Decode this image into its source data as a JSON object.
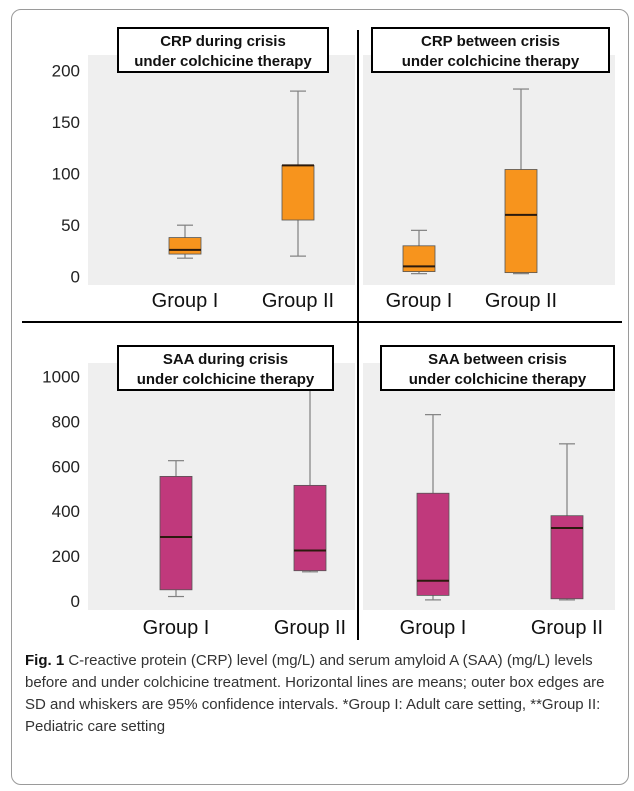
{
  "chart_data": [
    {
      "type": "boxplot",
      "title": "CRP during crisis under colchicine therapy",
      "title_lines": [
        "CRP during crisis",
        "under colchicine therapy"
      ],
      "ylim": [
        -8,
        215
      ],
      "yticks": [
        0,
        50,
        100,
        150,
        200
      ],
      "categories": [
        "Group I",
        "Group II"
      ],
      "box_color": "#f7941d",
      "boxes": [
        {
          "whisker_low": 18,
          "q1": 22,
          "mean": 26,
          "q3": 38,
          "whisker_high": 50
        },
        {
          "whisker_low": 20,
          "q1": 55,
          "mean": 108,
          "q3": 108,
          "whisker_high": 180
        }
      ]
    },
    {
      "type": "boxplot",
      "title": "CRP between crisis under colchicine therapy",
      "title_lines": [
        "CRP between crisis",
        "under colchicine therapy"
      ],
      "ylim": [
        -8,
        215
      ],
      "yticks": [],
      "categories": [
        "Group I",
        "Group II"
      ],
      "box_color": "#f7941d",
      "boxes": [
        {
          "whisker_low": 3,
          "q1": 5,
          "mean": 10,
          "q3": 30,
          "whisker_high": 45
        },
        {
          "whisker_low": 3,
          "q1": 4,
          "mean": 60,
          "q3": 104,
          "whisker_high": 182
        }
      ]
    },
    {
      "type": "boxplot",
      "title": "SAA during crisis under colchicine therapy",
      "title_lines": [
        "SAA during crisis",
        "under colchicine therapy"
      ],
      "ylim": [
        -40,
        1060
      ],
      "yticks": [
        0,
        200,
        400,
        600,
        800,
        1000
      ],
      "categories": [
        "Group I",
        "Group II"
      ],
      "box_color": "#c0397c",
      "boxes": [
        {
          "whisker_low": 20,
          "q1": 50,
          "mean": 285,
          "q3": 555,
          "whisker_high": 625
        },
        {
          "whisker_low": 130,
          "q1": 135,
          "mean": 225,
          "q3": 515,
          "whisker_high": 945
        }
      ]
    },
    {
      "type": "boxplot",
      "title": "SAA between crisis under colchicine therapy",
      "title_lines": [
        "SAA between crisis",
        "under colchicine therapy"
      ],
      "ylim": [
        -40,
        1060
      ],
      "yticks": [],
      "categories": [
        "Group I",
        "Group II"
      ],
      "box_color": "#c0397c",
      "boxes": [
        {
          "whisker_low": 5,
          "q1": 25,
          "mean": 90,
          "q3": 480,
          "whisker_high": 830
        },
        {
          "whisker_low": 5,
          "q1": 10,
          "mean": 325,
          "q3": 380,
          "whisker_high": 700
        }
      ]
    }
  ],
  "caption": {
    "label": "Fig. 1",
    "text": "C-reactive protein (CRP) level (mg/L) and serum amyloid A (SAA) (mg/L) levels before and under colchicine treatment. Horizontal lines are means; outer box edges are SD and whiskers are 95% confidence intervals. *Group I: Adult care setting, **Group II: Pediatric care setting"
  }
}
